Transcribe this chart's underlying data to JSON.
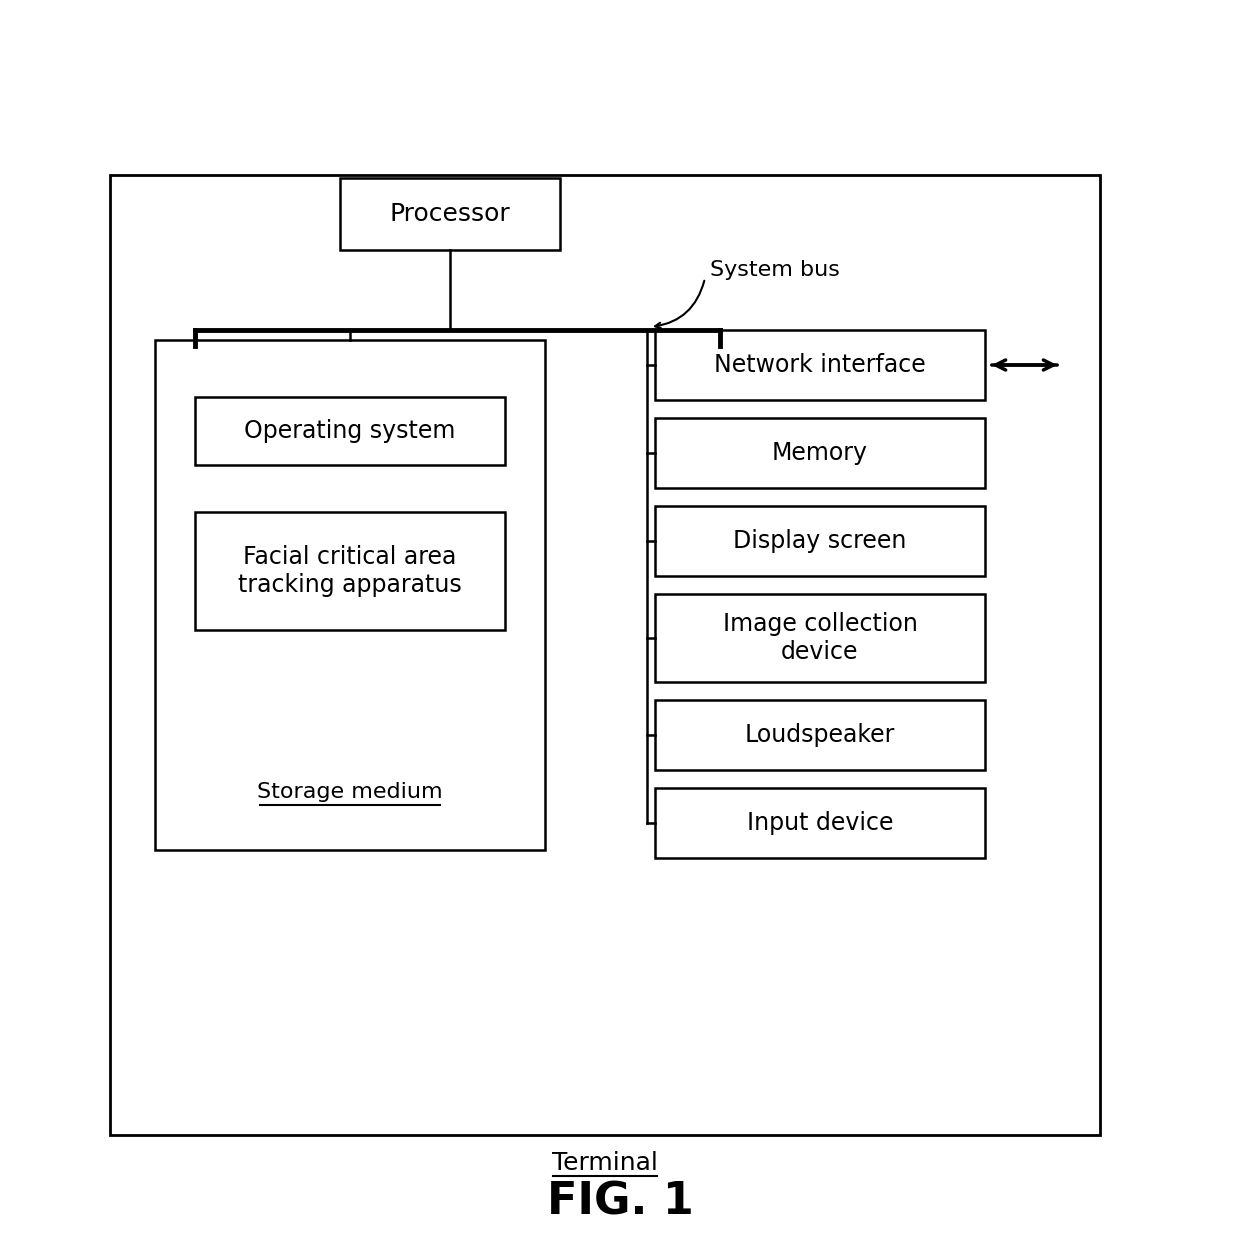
{
  "fig_title": "FIG. 1",
  "background_color": "#ffffff",
  "line_color": "#000000",
  "box_color": "#ffffff",
  "text_color": "#000000",
  "processor_label": "Processor",
  "storage_medium_label": "Storage medium",
  "os_label": "Operating system",
  "facial_label": "Facial critical area\ntracking apparatus",
  "terminal_label": "Terminal",
  "system_bus_label": "System bus",
  "network_label": "Network interface",
  "memory_label": "Memory",
  "display_label": "Display screen",
  "image_collection_label": "Image collection\ndevice",
  "loudspeaker_label": "Loudspeaker",
  "input_label": "Input device"
}
